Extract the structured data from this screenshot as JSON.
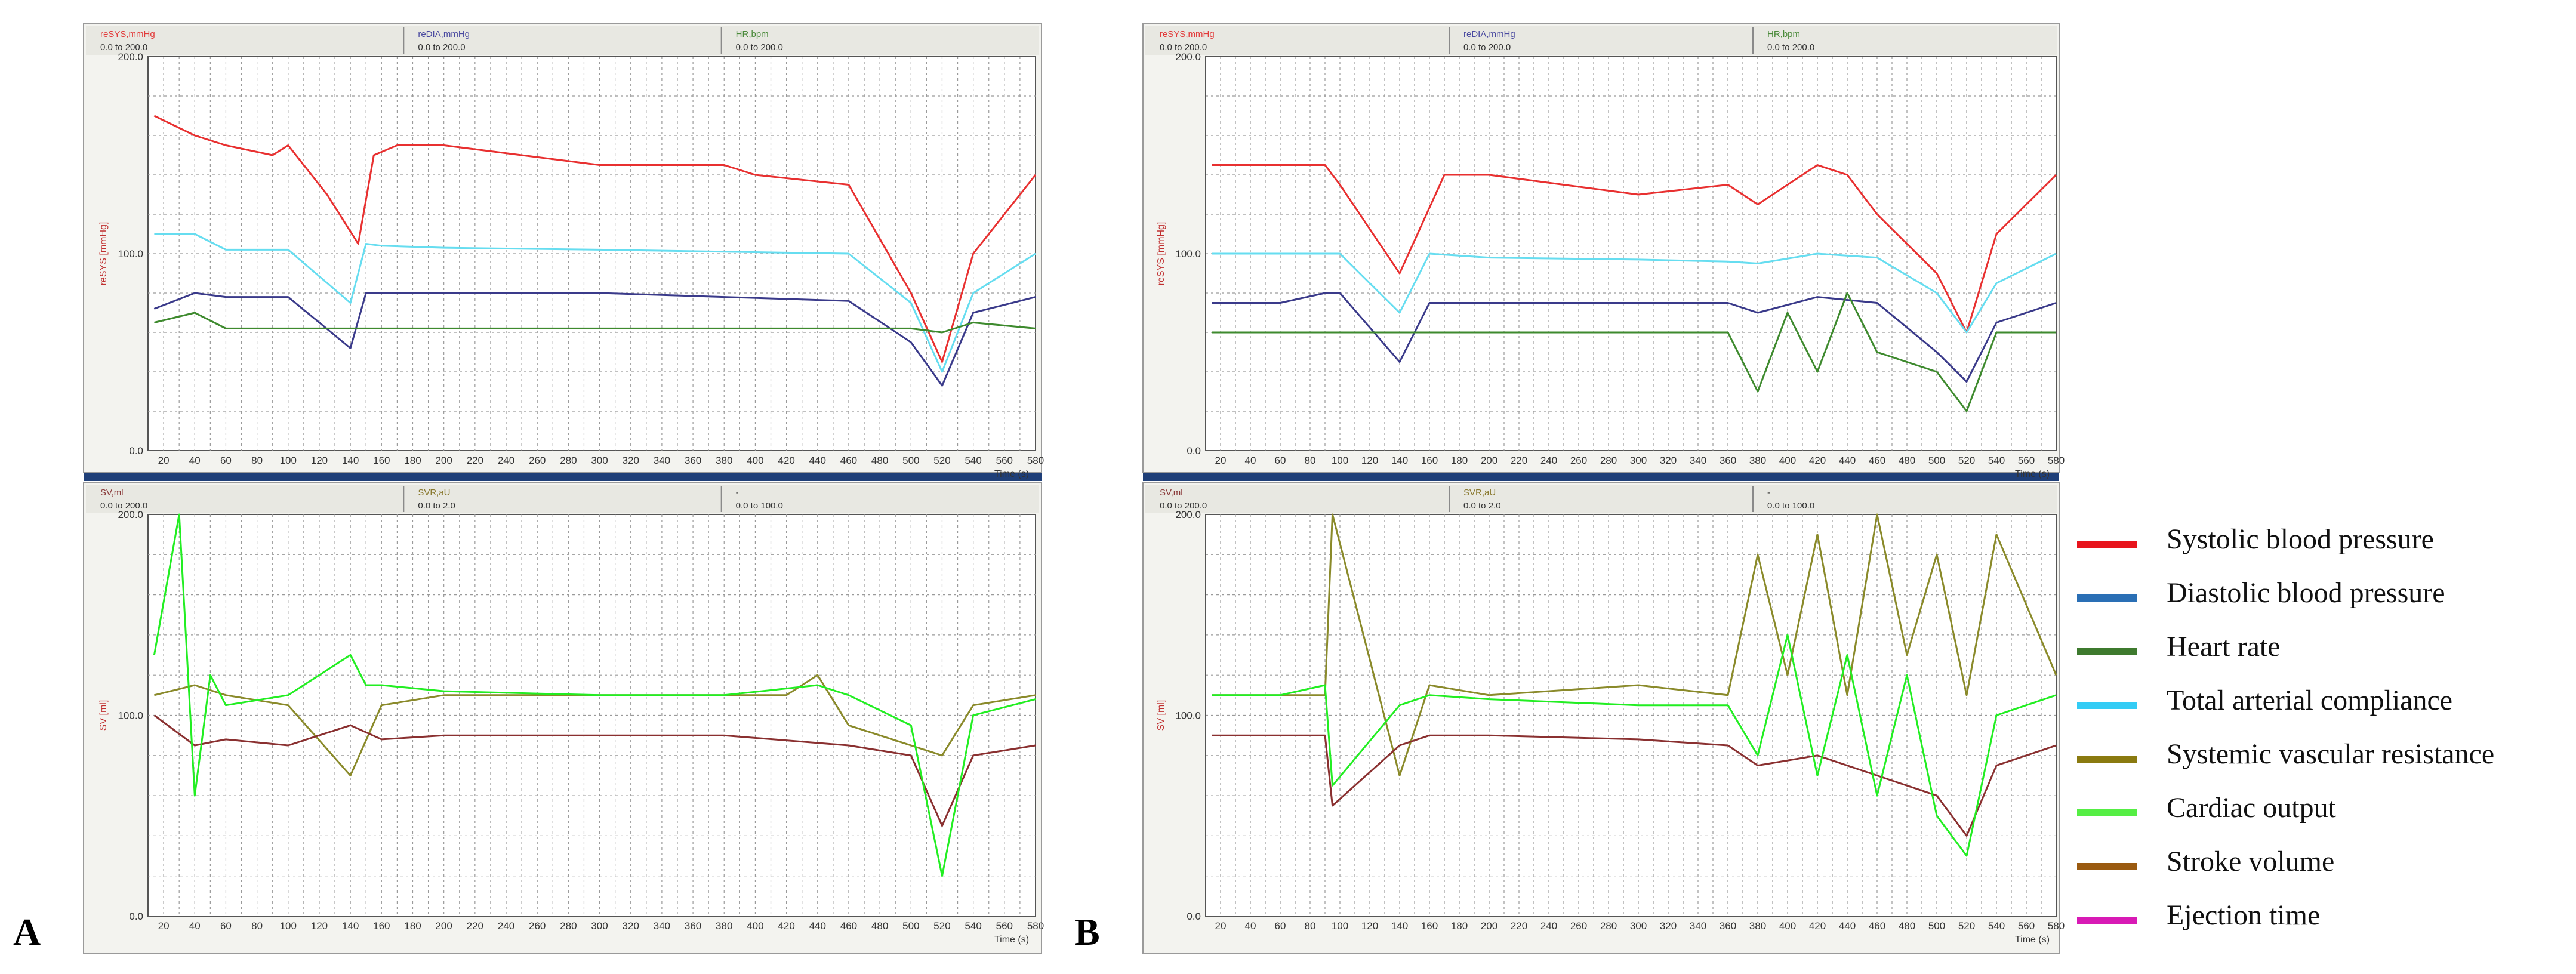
{
  "chart_data": [
    {
      "type": "line",
      "panel": "A",
      "position": "top",
      "header_labels": [
        {
          "name": "reSYS,mmHg",
          "range": "0.0 to 200.0",
          "color": "#e23a3a"
        },
        {
          "name": "reDIA,mmHg",
          "range": "0.0 to 200.0",
          "color": "#4a4aa0"
        },
        {
          "name": "HR,bpm",
          "range": "0.0 to 200.0",
          "color": "#4a8a3a"
        }
      ],
      "ylabel": "reSYS [mmHg]",
      "xlabel": "Time (s)",
      "ylim": [
        0,
        200
      ],
      "xlim": [
        10,
        580
      ],
      "grid": true,
      "y_ticks": [
        "0.0",
        "100.0",
        "200.0"
      ],
      "x_ticks": [
        "20",
        "40",
        "60",
        "80",
        "100",
        "120",
        "140",
        "160",
        "180",
        "200",
        "220",
        "240",
        "260",
        "280",
        "300",
        "320",
        "340",
        "360",
        "380",
        "400",
        "420",
        "440",
        "460",
        "480",
        "500",
        "520",
        "540",
        "560",
        "580"
      ],
      "series": [
        {
          "name": "Systolic blood pressure",
          "color": "#e83030",
          "x": [
            14,
            40,
            60,
            90,
            100,
            125,
            145,
            155,
            170,
            200,
            250,
            300,
            350,
            380,
            400,
            460,
            500,
            520,
            540,
            580
          ],
          "y": [
            170,
            160,
            155,
            150,
            155,
            130,
            105,
            150,
            155,
            155,
            150,
            145,
            145,
            145,
            140,
            135,
            80,
            45,
            100,
            140
          ]
        },
        {
          "name": "Total arterial compliance",
          "color": "#66ddf0",
          "x": [
            14,
            40,
            60,
            100,
            140,
            150,
            160,
            200,
            300,
            380,
            460,
            500,
            520,
            540,
            580
          ],
          "y": [
            110,
            110,
            102,
            102,
            75,
            105,
            104,
            103,
            102,
            101,
            100,
            75,
            40,
            80,
            100
          ]
        },
        {
          "name": "Diastolic blood pressure",
          "color": "#3a3a8a",
          "x": [
            14,
            40,
            60,
            100,
            140,
            150,
            160,
            200,
            300,
            380,
            460,
            500,
            520,
            540,
            580
          ],
          "y": [
            72,
            80,
            78,
            78,
            52,
            80,
            80,
            80,
            80,
            78,
            76,
            55,
            33,
            70,
            78
          ]
        },
        {
          "name": "Heart rate",
          "color": "#3e8a2e",
          "x": [
            14,
            40,
            60,
            100,
            140,
            160,
            200,
            300,
            380,
            440,
            460,
            500,
            520,
            540,
            580
          ],
          "y": [
            65,
            70,
            62,
            62,
            62,
            62,
            62,
            62,
            62,
            62,
            62,
            62,
            60,
            65,
            62
          ]
        }
      ]
    },
    {
      "type": "line",
      "panel": "A",
      "position": "bottom",
      "header_labels": [
        {
          "name": "SV,ml",
          "range": "0.0 to 200.0",
          "color": "#8a3a3a"
        },
        {
          "name": "SVR,aU",
          "range": "0.0 to 2.0",
          "color": "#8a7a30"
        },
        {
          "name": "-",
          "range": "0.0 to 100.0",
          "color": "#333333"
        }
      ],
      "ylabel": "SV [ml]",
      "xlabel": "Time (s)",
      "ylim": [
        0,
        200
      ],
      "xlim": [
        10,
        580
      ],
      "grid": true,
      "y_ticks": [
        "0.0",
        "100.0",
        "200.0"
      ],
      "x_ticks": [
        "20",
        "40",
        "60",
        "80",
        "100",
        "120",
        "140",
        "160",
        "180",
        "200",
        "220",
        "240",
        "260",
        "280",
        "300",
        "320",
        "340",
        "360",
        "380",
        "400",
        "420",
        "440",
        "460",
        "480",
        "500",
        "520",
        "540",
        "560",
        "580"
      ],
      "series": [
        {
          "name": "Systemic vascular resistance",
          "color": "#8a8a2a",
          "x": [
            14,
            40,
            60,
            100,
            140,
            160,
            200,
            300,
            380,
            420,
            440,
            460,
            500,
            520,
            540,
            580
          ],
          "y": [
            110,
            115,
            110,
            105,
            70,
            105,
            110,
            110,
            110,
            110,
            120,
            95,
            85,
            80,
            105,
            110
          ]
        },
        {
          "name": "Stroke volume",
          "color": "#8a3030",
          "x": [
            14,
            40,
            60,
            100,
            140,
            160,
            200,
            300,
            380,
            460,
            500,
            520,
            540,
            580
          ],
          "y": [
            100,
            85,
            88,
            85,
            95,
            88,
            90,
            90,
            90,
            85,
            80,
            45,
            80,
            85
          ]
        },
        {
          "name": "Cardiac output",
          "color": "#22ee22",
          "x": [
            14,
            30,
            40,
            50,
            60,
            100,
            140,
            150,
            160,
            200,
            300,
            380,
            440,
            460,
            500,
            520,
            540,
            580
          ],
          "y": [
            130,
            200,
            60,
            120,
            105,
            110,
            130,
            115,
            115,
            112,
            110,
            110,
            115,
            110,
            95,
            20,
            100,
            108
          ]
        }
      ]
    },
    {
      "type": "line",
      "panel": "B",
      "position": "top",
      "header_labels": [
        {
          "name": "reSYS,mmHg",
          "range": "0.0 to 200.0",
          "color": "#e23a3a"
        },
        {
          "name": "reDIA,mmHg",
          "range": "0.0 to 200.0",
          "color": "#4a4aa0"
        },
        {
          "name": "HR,bpm",
          "range": "0.0 to 200.0",
          "color": "#4a8a3a"
        }
      ],
      "ylabel": "reSYS [mmHg]",
      "xlabel": "Time (s)",
      "ylim": [
        0,
        200
      ],
      "xlim": [
        10,
        580
      ],
      "grid": true,
      "y_ticks": [
        "0.0",
        "100.0",
        "200.0"
      ],
      "x_ticks": [
        "20",
        "40",
        "60",
        "80",
        "100",
        "120",
        "140",
        "160",
        "180",
        "200",
        "220",
        "240",
        "260",
        "280",
        "300",
        "320",
        "340",
        "360",
        "380",
        "400",
        "420",
        "440",
        "460",
        "480",
        "500",
        "520",
        "540",
        "560",
        "580"
      ],
      "series": [
        {
          "name": "Systolic blood pressure",
          "color": "#e83030",
          "x": [
            14,
            60,
            90,
            100,
            140,
            170,
            200,
            300,
            360,
            380,
            420,
            440,
            460,
            500,
            520,
            540,
            580
          ],
          "y": [
            145,
            145,
            145,
            135,
            90,
            140,
            140,
            130,
            135,
            125,
            145,
            140,
            120,
            90,
            60,
            110,
            140
          ]
        },
        {
          "name": "Total arterial compliance",
          "color": "#66ddf0",
          "x": [
            14,
            60,
            100,
            140,
            160,
            200,
            300,
            360,
            380,
            420,
            460,
            500,
            520,
            540,
            580
          ],
          "y": [
            100,
            100,
            100,
            70,
            100,
            98,
            97,
            96,
            95,
            100,
            98,
            80,
            60,
            85,
            100
          ]
        },
        {
          "name": "Diastolic blood pressure",
          "color": "#3a3a8a",
          "x": [
            14,
            60,
            90,
            100,
            140,
            160,
            200,
            300,
            360,
            380,
            420,
            460,
            500,
            520,
            540,
            580
          ],
          "y": [
            75,
            75,
            80,
            80,
            45,
            75,
            75,
            75,
            75,
            70,
            78,
            75,
            50,
            35,
            65,
            75
          ]
        },
        {
          "name": "Heart rate",
          "color": "#3e8a2e",
          "x": [
            14,
            60,
            100,
            140,
            160,
            200,
            300,
            360,
            380,
            400,
            420,
            440,
            460,
            500,
            520,
            540,
            580
          ],
          "y": [
            60,
            60,
            60,
            60,
            60,
            60,
            60,
            60,
            30,
            70,
            40,
            80,
            50,
            40,
            20,
            60,
            60
          ]
        }
      ]
    },
    {
      "type": "line",
      "panel": "B",
      "position": "bottom",
      "header_labels": [
        {
          "name": "SV,ml",
          "range": "0.0 to 200.0",
          "color": "#8a3a3a"
        },
        {
          "name": "SVR,aU",
          "range": "0.0 to 2.0",
          "color": "#8a7a30"
        },
        {
          "name": "-",
          "range": "0.0 to 100.0",
          "color": "#333333"
        }
      ],
      "ylabel": "SV [ml]",
      "xlabel": "Time (s)",
      "ylim": [
        0,
        200
      ],
      "xlim": [
        10,
        580
      ],
      "grid": true,
      "y_ticks": [
        "0.0",
        "100.0",
        "200.0"
      ],
      "x_ticks": [
        "20",
        "40",
        "60",
        "80",
        "100",
        "120",
        "140",
        "160",
        "180",
        "200",
        "220",
        "240",
        "260",
        "280",
        "300",
        "320",
        "340",
        "360",
        "380",
        "400",
        "420",
        "440",
        "460",
        "480",
        "500",
        "520",
        "540",
        "560",
        "580"
      ],
      "series": [
        {
          "name": "Systemic vascular resistance",
          "color": "#8a8a2a",
          "x": [
            14,
            60,
            90,
            95,
            140,
            160,
            200,
            300,
            360,
            380,
            400,
            420,
            440,
            460,
            480,
            500,
            520,
            540,
            580
          ],
          "y": [
            110,
            110,
            110,
            200,
            70,
            115,
            110,
            115,
            110,
            180,
            120,
            190,
            110,
            200,
            130,
            180,
            110,
            190,
            120
          ]
        },
        {
          "name": "Stroke volume",
          "color": "#8a3030",
          "x": [
            14,
            60,
            90,
            95,
            140,
            160,
            200,
            300,
            360,
            380,
            420,
            460,
            500,
            520,
            540,
            580
          ],
          "y": [
            90,
            90,
            90,
            55,
            85,
            90,
            90,
            88,
            85,
            75,
            80,
            70,
            60,
            40,
            75,
            85
          ]
        },
        {
          "name": "Cardiac output",
          "color": "#22ee22",
          "x": [
            14,
            60,
            90,
            95,
            140,
            160,
            200,
            300,
            360,
            380,
            400,
            420,
            440,
            460,
            480,
            500,
            520,
            540,
            580
          ],
          "y": [
            110,
            110,
            115,
            65,
            105,
            110,
            108,
            105,
            105,
            80,
            140,
            70,
            130,
            60,
            120,
            50,
            30,
            100,
            110
          ]
        }
      ]
    }
  ],
  "panel_labels": [
    "A",
    "B"
  ],
  "legend": [
    {
      "label": "Systolic blood pressure",
      "color": "#e8141c"
    },
    {
      "label": "Diastolic blood pressure",
      "color": "#2a6fb5"
    },
    {
      "label": "Heart rate",
      "color": "#3e7a2e"
    },
    {
      "label": "Total arterial compliance",
      "color": "#33ccf5"
    },
    {
      "label": "Systemic vascular resistance",
      "color": "#8a7a10"
    },
    {
      "label": "Cardiac output",
      "color": "#55ee44"
    },
    {
      "label": "Stroke volume",
      "color": "#9a5a10"
    },
    {
      "label": "Ejection time",
      "color": "#d81ab5"
    }
  ]
}
